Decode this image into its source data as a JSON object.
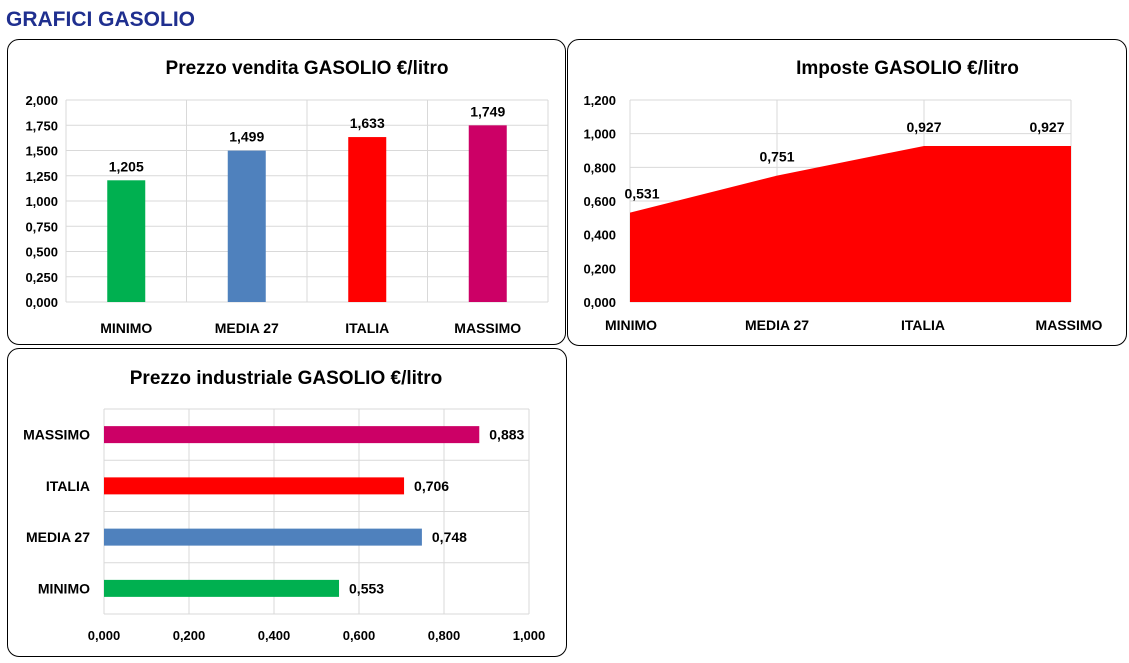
{
  "page": {
    "title": "GRAFICI GASOLIO"
  },
  "chart_data": [
    {
      "id": "vendita",
      "type": "bar",
      "title": "Prezzo vendita GASOLIO €/litro",
      "categories": [
        "MINIMO",
        "MEDIA 27",
        "ITALIA",
        "MASSIMO"
      ],
      "values": [
        1.205,
        1.499,
        1.633,
        1.749
      ],
      "value_labels": [
        "1,205",
        "1,499",
        "1,633",
        "1,749"
      ],
      "colors": [
        "#00b050",
        "#4f81bd",
        "#ff0000",
        "#cc0066"
      ],
      "ylim": [
        0,
        2
      ],
      "yticks": [
        0,
        0.25,
        0.5,
        0.75,
        1,
        1.25,
        1.5,
        1.75,
        2
      ],
      "ytick_labels": [
        "0,000",
        "0,250",
        "0,500",
        "0,750",
        "1,000",
        "1,250",
        "1,500",
        "1,750",
        "2,000"
      ],
      "grid": true,
      "xlabel": "",
      "ylabel": ""
    },
    {
      "id": "imposte",
      "type": "area",
      "title": "Imposte GASOLIO €/litro",
      "categories": [
        "MINIMO",
        "MEDIA 27",
        "ITALIA",
        "MASSIMO"
      ],
      "values": [
        0.531,
        0.751,
        0.927,
        0.927
      ],
      "value_labels": [
        "0,531",
        "0,751",
        "0,927",
        "0,927"
      ],
      "color": "#ff0000",
      "ylim": [
        0,
        1.2
      ],
      "yticks": [
        0,
        0.2,
        0.4,
        0.6,
        0.8,
        1.0,
        1.2
      ],
      "ytick_labels": [
        "0,000",
        "0,200",
        "0,400",
        "0,600",
        "0,800",
        "1,000",
        "1,200"
      ],
      "grid": true,
      "xlabel": "",
      "ylabel": ""
    },
    {
      "id": "industriale",
      "type": "bar",
      "orientation": "horizontal",
      "title": "Prezzo industriale GASOLIO €/litro",
      "categories": [
        "MINIMO",
        "MEDIA 27",
        "ITALIA",
        "MASSIMO"
      ],
      "values": [
        0.553,
        0.748,
        0.706,
        0.883
      ],
      "value_labels": [
        "0,553",
        "0,748",
        "0,706",
        "0,883"
      ],
      "colors": [
        "#00b050",
        "#4f81bd",
        "#ff0000",
        "#cc0066"
      ],
      "xlim": [
        0,
        1
      ],
      "xticks": [
        0,
        0.2,
        0.4,
        0.6,
        0.8,
        1.0
      ],
      "xtick_labels": [
        "0,000",
        "0,200",
        "0,400",
        "0,600",
        "0,800",
        "1,000"
      ],
      "grid": true,
      "xlabel": "",
      "ylabel": ""
    }
  ]
}
